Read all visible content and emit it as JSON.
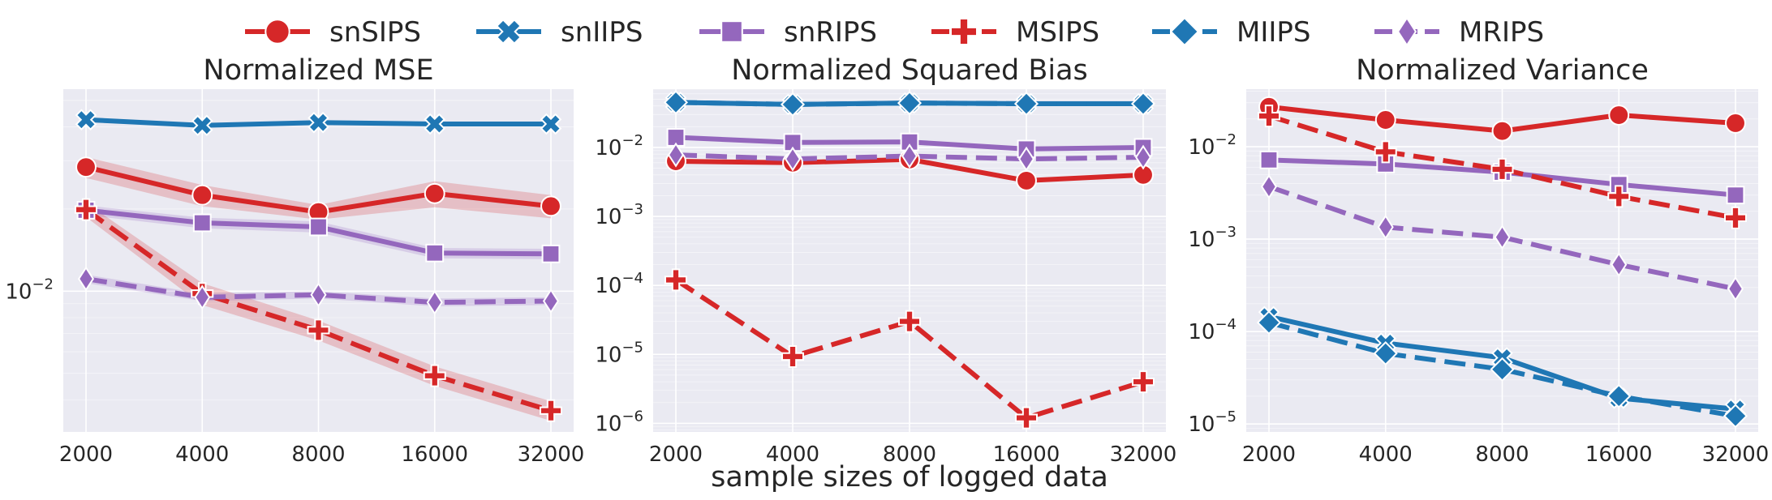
{
  "figure": {
    "xlabel": "sample sizes of logged data"
  },
  "legend": [
    {
      "name": "snSIPS",
      "color": "#d62728",
      "marker": "circle",
      "dashed": false
    },
    {
      "name": "snIIPS",
      "color": "#1f77b4",
      "marker": "x-filled",
      "dashed": false
    },
    {
      "name": "snRIPS",
      "color": "#9467bd",
      "marker": "square",
      "dashed": false
    },
    {
      "name": "MSIPS",
      "color": "#d62728",
      "marker": "plus-filled",
      "dashed": true
    },
    {
      "name": "MIIPS",
      "color": "#1f77b4",
      "marker": "diamond",
      "dashed": true
    },
    {
      "name": "MRIPS",
      "color": "#9467bd",
      "marker": "thin-diamond",
      "dashed": true
    }
  ],
  "chart_data": [
    {
      "type": "line",
      "title": "Normalized MSE",
      "x_ticks": [
        "2000",
        "4000",
        "8000",
        "16000",
        "32000"
      ],
      "y_scale": "log",
      "ylim": [
        0.00305,
        0.055
      ],
      "y_ticks": [
        {
          "value": 0.01,
          "base": "10",
          "exp": "−2"
        }
      ],
      "grid": true,
      "series": [
        {
          "name": "snSIPS",
          "values": [
            0.0285,
            0.0225,
            0.0195,
            0.0228,
            0.0205
          ],
          "band": [
            0.0025,
            0.002,
            0.0012,
            0.0025,
            0.002
          ]
        },
        {
          "name": "snIIPS",
          "values": [
            0.0425,
            0.0405,
            0.0415,
            0.041,
            0.041
          ]
        },
        {
          "name": "snRIPS",
          "values": [
            0.0198,
            0.0178,
            0.0172,
            0.0138,
            0.0137
          ],
          "band": [
            0.0008,
            0.0008,
            0.0008,
            0.0006,
            0.0006
          ]
        },
        {
          "name": "MSIPS",
          "values": [
            0.0199,
            0.0098,
            0.0072,
            0.0049,
            0.00365
          ],
          "band": [
            0.0012,
            0.0009,
            0.0006,
            0.0004,
            0.0003
          ]
        },
        {
          "name": "MRIPS",
          "values": [
            0.0111,
            0.0095,
            0.0097,
            0.0091,
            0.0092
          ],
          "band": [
            0.0004,
            0.0003,
            0.0003,
            0.0003,
            0.0003
          ]
        }
      ]
    },
    {
      "type": "line",
      "title": "Normalized Squared Bias",
      "x_ticks": [
        "2000",
        "4000",
        "8000",
        "16000",
        "32000"
      ],
      "y_scale": "log",
      "ylim": [
        7.5e-07,
        0.07
      ],
      "y_ticks": [
        {
          "value": 1e-06,
          "base": "10",
          "exp": "−6"
        },
        {
          "value": 1e-05,
          "base": "10",
          "exp": "−5"
        },
        {
          "value": 0.0001,
          "base": "10",
          "exp": "−4"
        },
        {
          "value": 0.001,
          "base": "10",
          "exp": "−3"
        },
        {
          "value": 0.01,
          "base": "10",
          "exp": "−2"
        }
      ],
      "grid": true,
      "series": [
        {
          "name": "snSIPS",
          "values": [
            0.0063,
            0.006,
            0.0067,
            0.0033,
            0.004
          ]
        },
        {
          "name": "snIIPS",
          "values": [
            0.045,
            0.042,
            0.044,
            0.043,
            0.043
          ]
        },
        {
          "name": "snRIPS",
          "values": [
            0.014,
            0.0118,
            0.012,
            0.0095,
            0.01
          ]
        },
        {
          "name": "MSIPS",
          "values": [
            0.00012,
            9.3e-06,
            3e-05,
            1.2e-06,
            4e-06
          ]
        },
        {
          "name": "MIIPS",
          "values": [
            0.045,
            0.042,
            0.044,
            0.043,
            0.043
          ]
        },
        {
          "name": "MRIPS",
          "values": [
            0.0078,
            0.0068,
            0.0075,
            0.0068,
            0.0072
          ]
        }
      ]
    },
    {
      "type": "line",
      "title": "Normalized Variance",
      "x_ticks": [
        "2000",
        "4000",
        "8000",
        "16000",
        "32000"
      ],
      "y_scale": "log",
      "ylim": [
        8.2e-06,
        0.042
      ],
      "y_ticks": [
        {
          "value": 1e-05,
          "base": "10",
          "exp": "−5"
        },
        {
          "value": 0.0001,
          "base": "10",
          "exp": "−4"
        },
        {
          "value": 0.001,
          "base": "10",
          "exp": "−3"
        },
        {
          "value": 0.01,
          "base": "10",
          "exp": "−2"
        }
      ],
      "grid": true,
      "series": [
        {
          "name": "snSIPS",
          "values": [
            0.027,
            0.0195,
            0.0148,
            0.022,
            0.018
          ]
        },
        {
          "name": "snIIPS",
          "values": [
            0.000145,
            7.5e-05,
            5.2e-05,
            1.9e-05,
            1.45e-05
          ]
        },
        {
          "name": "snRIPS",
          "values": [
            0.0072,
            0.0065,
            0.0053,
            0.0039,
            0.003
          ]
        },
        {
          "name": "MSIPS",
          "values": [
            0.0215,
            0.0088,
            0.0057,
            0.0029,
            0.0017
          ]
        },
        {
          "name": "MIIPS",
          "values": [
            0.000125,
            5.8e-05,
            3.9e-05,
            2e-05,
            1.22e-05
          ]
        },
        {
          "name": "MRIPS",
          "values": [
            0.0037,
            0.00135,
            0.00105,
            0.00053,
            0.00029
          ]
        }
      ]
    }
  ]
}
